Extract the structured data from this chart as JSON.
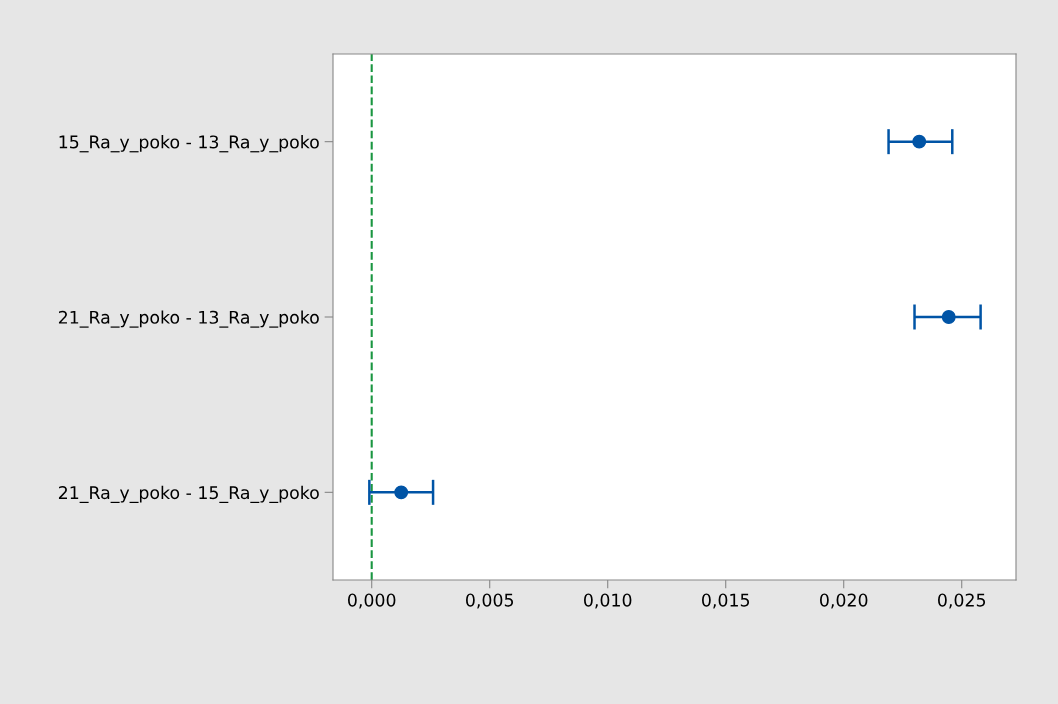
{
  "chart_data": {
    "type": "scatter",
    "orientation": "horizontal",
    "categories": [
      "15_Ra_y_poko - 13_Ra_y_poko",
      "21_Ra_y_poko - 13_Ra_y_poko",
      "21_Ra_y_poko - 15_Ra_y_poko"
    ],
    "color": "#0054a6",
    "values": [
      0.0232,
      0.02445,
      0.00125
    ],
    "errors": [
      [
        0.0219,
        0.0246
      ],
      [
        0.023,
        0.0258
      ],
      [
        -0.0001,
        0.0026
      ]
    ],
    "marker": "circle",
    "xlim": [
      -0.00164,
      0.0273
    ],
    "xticks": [
      {
        "value": 0.0,
        "label": "0,000"
      },
      {
        "value": 0.005,
        "label": "0,005"
      },
      {
        "value": 0.01,
        "label": "0,010"
      },
      {
        "value": 0.015,
        "label": "0,015"
      },
      {
        "value": 0.02,
        "label": "0,020"
      },
      {
        "value": 0.025,
        "label": "0,025"
      }
    ],
    "ref_lines": [
      {
        "axis": "x",
        "value": 0.0,
        "color": "#1a9641",
        "line_style": "dashed"
      }
    ],
    "grid": false,
    "legend": false
  }
}
